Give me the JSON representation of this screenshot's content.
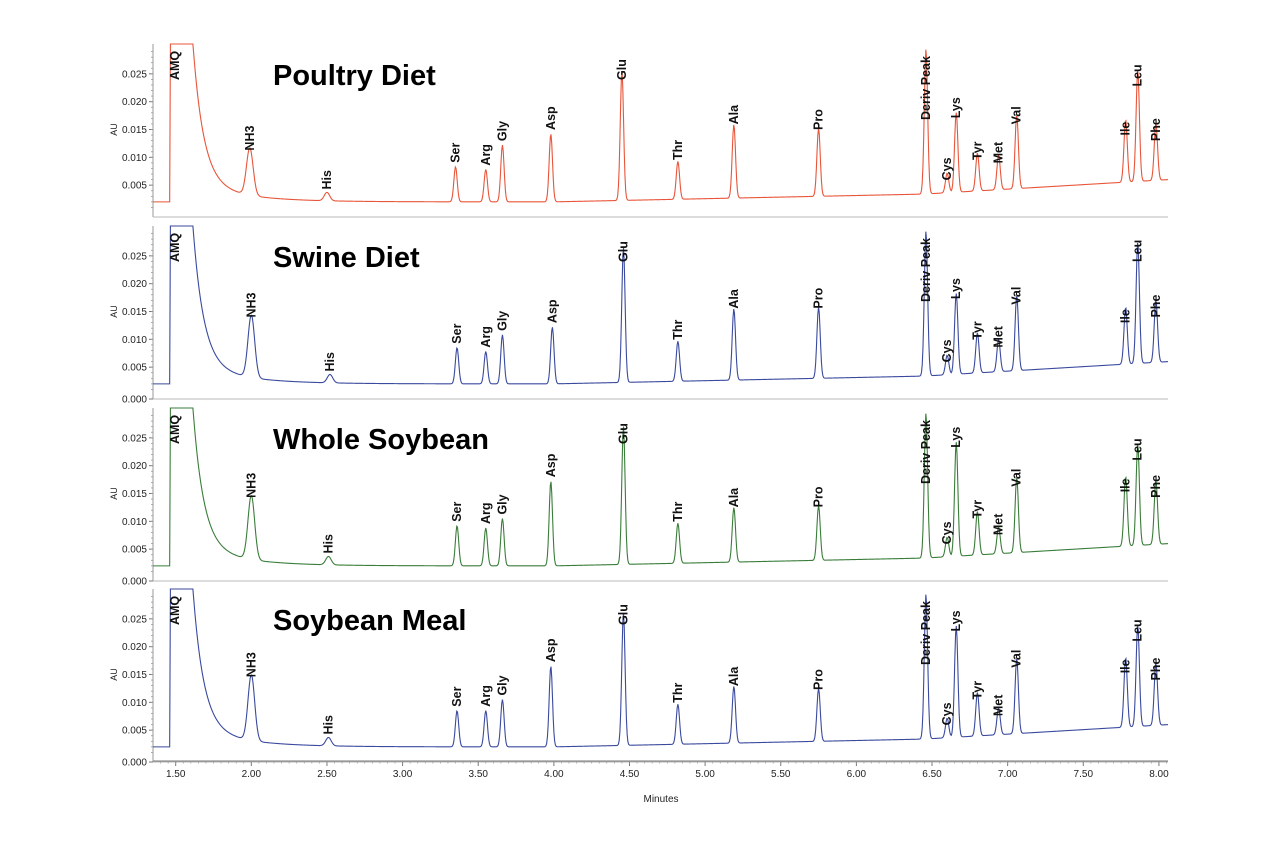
{
  "chart_data": {
    "type": "line",
    "xlabel": "Minutes",
    "ylabel": "AU",
    "xlim": [
      1.35,
      8.06
    ],
    "ylim": [
      0,
      0.03
    ],
    "xticks": [
      "1.50",
      "2.00",
      "2.50",
      "3.00",
      "3.50",
      "4.00",
      "4.50",
      "5.00",
      "5.50",
      "6.00",
      "6.50",
      "7.00",
      "7.50",
      "8.00"
    ],
    "xtick_values": [
      1.5,
      2.0,
      2.5,
      3.0,
      3.5,
      4.0,
      4.5,
      5.0,
      5.5,
      6.0,
      6.5,
      7.0,
      7.5,
      8.0
    ],
    "yticks": [
      "0.000",
      "0.005",
      "0.010",
      "0.015",
      "0.020",
      "0.025"
    ],
    "ytick_values": [
      0,
      0.005,
      0.01,
      0.015,
      0.02,
      0.025
    ],
    "panels": [
      {
        "title": "Poultry Diet",
        "color": "#e8553a",
        "baseline": 0.002,
        "baseline_end": 0.006,
        "peaks": [
          {
            "name": "AMQ",
            "rt": 1.47,
            "height": 0.028
          },
          {
            "name": "NH3",
            "rt": 1.99,
            "height": 0.0105
          },
          {
            "name": "His",
            "rt": 2.5,
            "height": 0.0035
          },
          {
            "name": "Ser",
            "rt": 3.35,
            "height": 0.0083
          },
          {
            "name": "Arg",
            "rt": 3.55,
            "height": 0.0078
          },
          {
            "name": "Gly",
            "rt": 3.66,
            "height": 0.0122
          },
          {
            "name": "Asp",
            "rt": 3.98,
            "height": 0.0142
          },
          {
            "name": "Glu",
            "rt": 4.45,
            "height": 0.0252
          },
          {
            "name": "Thr",
            "rt": 4.82,
            "height": 0.0088
          },
          {
            "name": "Ala",
            "rt": 5.19,
            "height": 0.0152
          },
          {
            "name": "Pro",
            "rt": 5.75,
            "height": 0.0142
          },
          {
            "name": "Deriv Peak",
            "rt": 6.46,
            "height": 0.028
          },
          {
            "name": "Cys",
            "rt": 6.6,
            "height": 0.0055
          },
          {
            "name": "Lys",
            "rt": 6.66,
            "height": 0.0163
          },
          {
            "name": "Tyr",
            "rt": 6.8,
            "height": 0.0088
          },
          {
            "name": "Met",
            "rt": 6.94,
            "height": 0.0082
          },
          {
            "name": "Val",
            "rt": 7.06,
            "height": 0.0152
          },
          {
            "name": "Ile",
            "rt": 7.78,
            "height": 0.0132
          },
          {
            "name": "Leu",
            "rt": 7.86,
            "height": 0.022
          },
          {
            "name": "Phe",
            "rt": 7.98,
            "height": 0.0122
          }
        ]
      },
      {
        "title": "Swine Diet",
        "color": "#3a4a9e",
        "baseline": 0.002,
        "baseline_end": 0.006,
        "peaks": [
          {
            "name": "AMQ",
            "rt": 1.47,
            "height": 0.028
          },
          {
            "name": "NH3",
            "rt": 2.0,
            "height": 0.0132
          },
          {
            "name": "His",
            "rt": 2.52,
            "height": 0.0035
          },
          {
            "name": "Ser",
            "rt": 3.36,
            "height": 0.0085
          },
          {
            "name": "Arg",
            "rt": 3.55,
            "height": 0.0078
          },
          {
            "name": "Gly",
            "rt": 3.66,
            "height": 0.0108
          },
          {
            "name": "Asp",
            "rt": 3.99,
            "height": 0.0122
          },
          {
            "name": "Glu",
            "rt": 4.46,
            "height": 0.0262
          },
          {
            "name": "Thr",
            "rt": 4.82,
            "height": 0.0092
          },
          {
            "name": "Ala",
            "rt": 5.19,
            "height": 0.0148
          },
          {
            "name": "Pro",
            "rt": 5.75,
            "height": 0.0148
          },
          {
            "name": "Deriv Peak",
            "rt": 6.46,
            "height": 0.028
          },
          {
            "name": "Cys",
            "rt": 6.6,
            "height": 0.0055
          },
          {
            "name": "Lys",
            "rt": 6.66,
            "height": 0.0165
          },
          {
            "name": "Tyr",
            "rt": 6.8,
            "height": 0.0092
          },
          {
            "name": "Met",
            "rt": 6.94,
            "height": 0.0078
          },
          {
            "name": "Val",
            "rt": 7.06,
            "height": 0.0155
          },
          {
            "name": "Ile",
            "rt": 7.78,
            "height": 0.0122
          },
          {
            "name": "Leu",
            "rt": 7.86,
            "height": 0.0238
          },
          {
            "name": "Phe",
            "rt": 7.98,
            "height": 0.0132
          }
        ]
      },
      {
        "title": "Whole Soybean",
        "color": "#3a7d3a",
        "baseline": 0.002,
        "baseline_end": 0.006,
        "peaks": [
          {
            "name": "AMQ",
            "rt": 1.47,
            "height": 0.028
          },
          {
            "name": "NH3",
            "rt": 2.0,
            "height": 0.0135
          },
          {
            "name": "His",
            "rt": 2.51,
            "height": 0.0035
          },
          {
            "name": "Ser",
            "rt": 3.36,
            "height": 0.0092
          },
          {
            "name": "Arg",
            "rt": 3.55,
            "height": 0.0088
          },
          {
            "name": "Gly",
            "rt": 3.66,
            "height": 0.0105
          },
          {
            "name": "Asp",
            "rt": 3.98,
            "height": 0.0172
          },
          {
            "name": "Glu",
            "rt": 4.46,
            "height": 0.0268
          },
          {
            "name": "Thr",
            "rt": 4.82,
            "height": 0.0092
          },
          {
            "name": "Ala",
            "rt": 5.19,
            "height": 0.0118
          },
          {
            "name": "Pro",
            "rt": 5.75,
            "height": 0.0118
          },
          {
            "name": "Deriv Peak",
            "rt": 6.46,
            "height": 0.028
          },
          {
            "name": "Cys",
            "rt": 6.6,
            "height": 0.0055
          },
          {
            "name": "Lys",
            "rt": 6.66,
            "height": 0.0225
          },
          {
            "name": "Tyr",
            "rt": 6.8,
            "height": 0.0098
          },
          {
            "name": "Met",
            "rt": 6.94,
            "height": 0.0068
          },
          {
            "name": "Val",
            "rt": 7.06,
            "height": 0.0155
          },
          {
            "name": "Ile",
            "rt": 7.78,
            "height": 0.0145
          },
          {
            "name": "Leu",
            "rt": 7.86,
            "height": 0.0202
          },
          {
            "name": "Phe",
            "rt": 7.98,
            "height": 0.0135
          }
        ]
      },
      {
        "title": "Soybean Meal",
        "color": "#3a4a9e",
        "baseline": 0.002,
        "baseline_end": 0.006,
        "peaks": [
          {
            "name": "AMQ",
            "rt": 1.47,
            "height": 0.028
          },
          {
            "name": "NH3",
            "rt": 2.0,
            "height": 0.0138
          },
          {
            "name": "His",
            "rt": 2.51,
            "height": 0.0035
          },
          {
            "name": "Ser",
            "rt": 3.36,
            "height": 0.0085
          },
          {
            "name": "Arg",
            "rt": 3.55,
            "height": 0.0085
          },
          {
            "name": "Gly",
            "rt": 3.66,
            "height": 0.0105
          },
          {
            "name": "Asp",
            "rt": 3.98,
            "height": 0.0165
          },
          {
            "name": "Glu",
            "rt": 4.46,
            "height": 0.0258
          },
          {
            "name": "Thr",
            "rt": 4.82,
            "height": 0.0092
          },
          {
            "name": "Ala",
            "rt": 5.19,
            "height": 0.0122
          },
          {
            "name": "Pro",
            "rt": 5.75,
            "height": 0.0115
          },
          {
            "name": "Deriv Peak",
            "rt": 6.46,
            "height": 0.028
          },
          {
            "name": "Cys",
            "rt": 6.6,
            "height": 0.0055
          },
          {
            "name": "Lys",
            "rt": 6.66,
            "height": 0.022
          },
          {
            "name": "Tyr",
            "rt": 6.8,
            "height": 0.0098
          },
          {
            "name": "Met",
            "rt": 6.94,
            "height": 0.0068
          },
          {
            "name": "Val",
            "rt": 7.06,
            "height": 0.0155
          },
          {
            "name": "Ile",
            "rt": 7.78,
            "height": 0.0145
          },
          {
            "name": "Leu",
            "rt": 7.86,
            "height": 0.0202
          },
          {
            "name": "Phe",
            "rt": 7.98,
            "height": 0.0132
          }
        ]
      }
    ]
  }
}
